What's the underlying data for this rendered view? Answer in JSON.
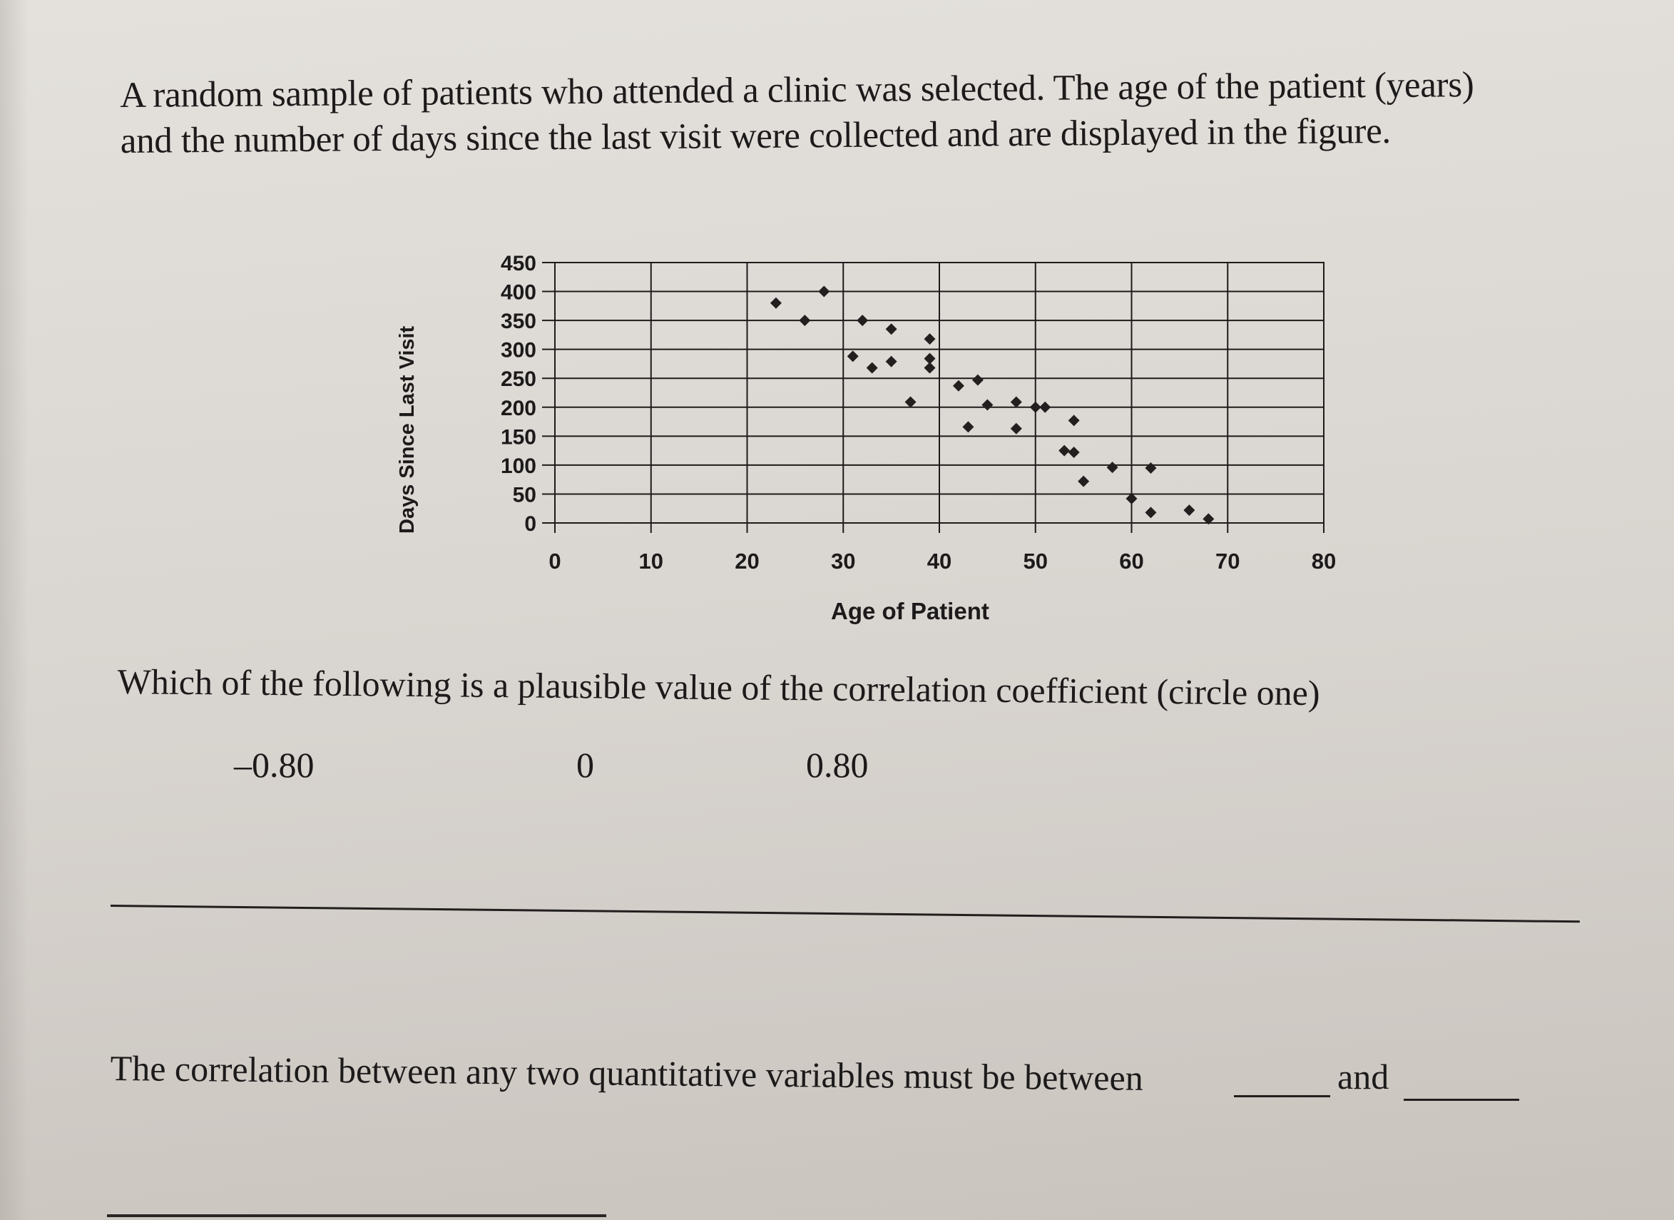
{
  "intro": {
    "line1": "A random sample of patients who attended a clinic was selected. The age of the patient (years)",
    "line2": "and the number of days since the last visit were collected and are displayed in the figure."
  },
  "chart": {
    "ylabel": "Days Since Last Visit",
    "xlabel": "Age of Patient"
  },
  "question": {
    "text": "Which of the following is a plausible value of the correlation coefficient (circle one)",
    "options": [
      "–0.80",
      "0",
      "0.80"
    ]
  },
  "fill_in": {
    "text": "The correlation between any two quantitative variables must be between",
    "and_word": "and"
  },
  "chart_data": {
    "type": "scatter",
    "title": "",
    "xlabel": "Age of Patient",
    "ylabel": "Days Since Last Visit",
    "xlim": [
      0,
      80
    ],
    "ylim": [
      0,
      450
    ],
    "x_ticks": [
      0,
      10,
      20,
      30,
      40,
      50,
      60,
      70,
      80
    ],
    "y_ticks": [
      0,
      50,
      100,
      150,
      200,
      250,
      300,
      350,
      400,
      450
    ],
    "grid": true,
    "legend": null,
    "marker": "diamond",
    "points": [
      [
        23,
        380
      ],
      [
        28,
        400
      ],
      [
        26,
        350
      ],
      [
        32,
        350
      ],
      [
        35,
        335
      ],
      [
        31,
        288
      ],
      [
        33,
        268
      ],
      [
        35,
        279
      ],
      [
        39,
        318
      ],
      [
        39,
        284
      ],
      [
        39,
        268
      ],
      [
        37,
        209
      ],
      [
        42,
        237
      ],
      [
        44,
        247
      ],
      [
        45,
        204
      ],
      [
        48,
        209
      ],
      [
        43,
        166
      ],
      [
        48,
        163
      ],
      [
        50,
        200
      ],
      [
        51,
        200
      ],
      [
        54,
        177
      ],
      [
        53,
        125
      ],
      [
        54,
        122
      ],
      [
        55,
        72
      ],
      [
        58,
        96
      ],
      [
        62,
        95
      ],
      [
        60,
        42
      ],
      [
        62,
        18
      ],
      [
        66,
        22
      ],
      [
        68,
        7
      ]
    ]
  }
}
